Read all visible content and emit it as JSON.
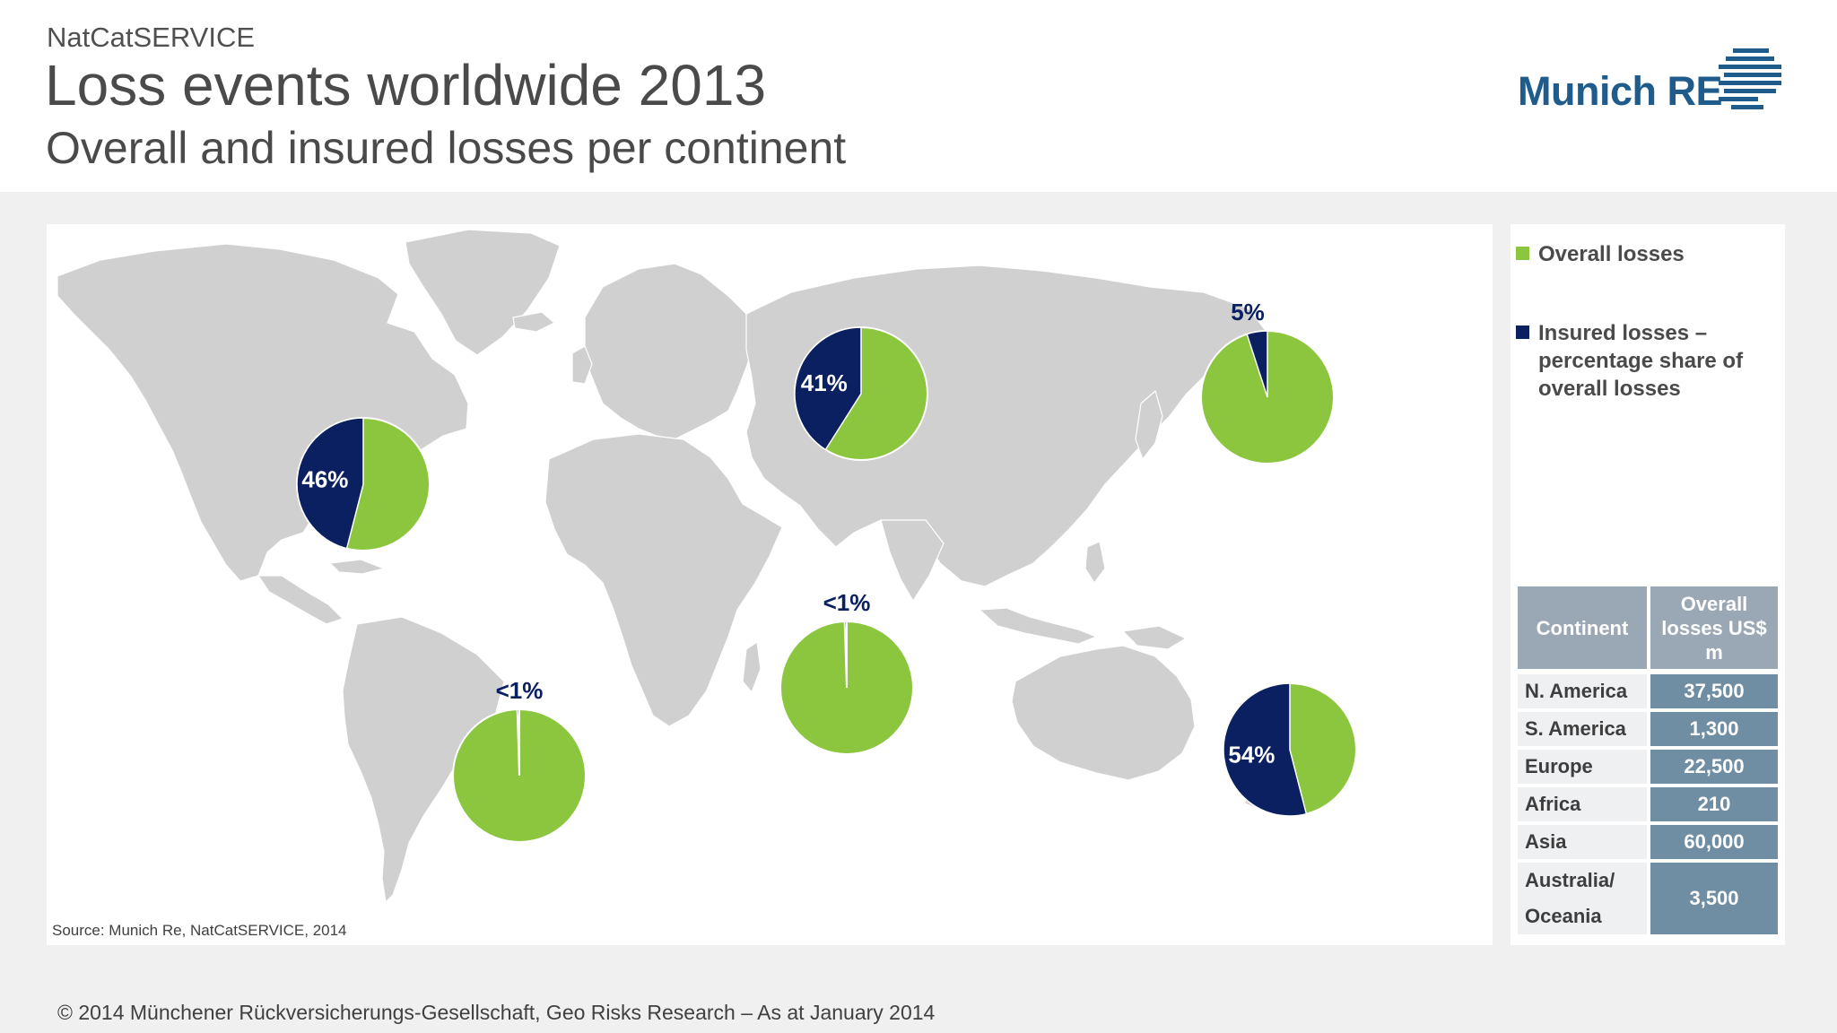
{
  "header": {
    "kicker": "NatCatSERVICE",
    "title": "Loss events worldwide 2013",
    "subtitle": "Overall and insured losses per continent",
    "logo": "Munich RE",
    "logo_icon": "munich-re-stripes-icon"
  },
  "colors": {
    "overall": "#8cc63f",
    "insured": "#0b2060",
    "label_dark": "#0b2060",
    "label_light": "#ffffff",
    "land": "#d0d0d0",
    "table_header": "#9aa8b5",
    "table_value": "#6f8ea3",
    "table_name": "#eef0f2"
  },
  "legend": {
    "overall": "Overall losses",
    "insured": "Insured losses – percentage share of overall losses"
  },
  "chart_data": {
    "type": "pie",
    "title": "Overall and insured losses per continent",
    "series": [
      {
        "name": "N. America",
        "label": "46%",
        "insured_share_percent": 46,
        "overall_losses_usd_m": 37500
      },
      {
        "name": "S. America",
        "label": "<1%",
        "insured_share_percent": 0.5,
        "overall_losses_usd_m": 1300
      },
      {
        "name": "Europe",
        "label": "41%",
        "insured_share_percent": 41,
        "overall_losses_usd_m": 22500
      },
      {
        "name": "Africa",
        "label": "<1%",
        "insured_share_percent": 0.5,
        "overall_losses_usd_m": 210
      },
      {
        "name": "Asia",
        "label": "5%",
        "insured_share_percent": 5,
        "overall_losses_usd_m": 60000
      },
      {
        "name": "Australia/ Oceania",
        "label": "54%",
        "insured_share_percent": 54,
        "overall_losses_usd_m": 3500
      }
    ]
  },
  "table": {
    "headers": [
      "Continent",
      "Overall losses US$ m"
    ],
    "rows": [
      {
        "continent": "N. America",
        "value": "37,500"
      },
      {
        "continent": "S. America",
        "value": "1,300"
      },
      {
        "continent": "Europe",
        "value": "22,500"
      },
      {
        "continent": "Africa",
        "value": "210"
      },
      {
        "continent": "Asia",
        "value": "60,000"
      },
      {
        "continent": "Australia/ Oceania",
        "value": "3,500"
      }
    ]
  },
  "source": "Source: Munich Re, NatCatSERVICE, 2014",
  "footer": "© 2014 Münchener Rückversicherungs-Gesellschaft, Geo Risks Research – As at January 2014"
}
